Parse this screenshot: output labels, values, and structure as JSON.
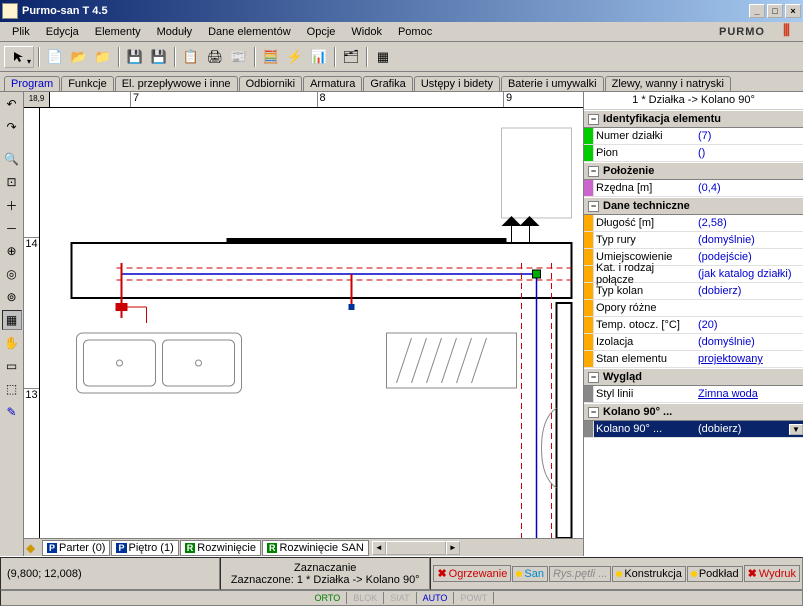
{
  "window": {
    "title": "Purmo-san T 4.5"
  },
  "brand": {
    "name": "PURMO"
  },
  "menu": [
    "Plik",
    "Edycja",
    "Elementy",
    "Moduły",
    "Dane elementów",
    "Opcje",
    "Widok",
    "Pomoc"
  ],
  "tabs": {
    "items": [
      "Program",
      "Funkcje",
      "El. przepływowe i inne",
      "Odbiorniki",
      "Armatura",
      "Grafika",
      "Ustępy i bidety",
      "Baterie i umywalki",
      "Zlewy, wanny i natryski"
    ],
    "active": 0
  },
  "ruler": {
    "h": [
      7,
      8,
      9
    ],
    "v": [
      14,
      13
    ],
    "corner": "18,9"
  },
  "bottom_tabs": [
    {
      "badge": "P",
      "badge_bg": "#003399",
      "label": "Parter (0)"
    },
    {
      "badge": "P",
      "badge_bg": "#003399",
      "label": "Piętro (1)"
    },
    {
      "badge": "R",
      "badge_bg": "#008000",
      "label": "Rozwinięcie"
    },
    {
      "badge": "R",
      "badge_bg": "#008000",
      "label": "Rozwinięcie SAN"
    }
  ],
  "properties": {
    "title": "1 * Działka -> Kolano 90°",
    "groups": [
      {
        "name": "Identyfikacja elementu",
        "rows": [
          {
            "swatch": "#00cc00",
            "label": "Numer działki",
            "value": "(7)",
            "link": true
          },
          {
            "swatch": "#00cc00",
            "label": "Pion",
            "value": "()",
            "link": true
          }
        ]
      },
      {
        "name": "Położenie",
        "rows": [
          {
            "swatch": "#cc66cc",
            "label": "Rzędna [m]",
            "value": "(0,4)",
            "link": true
          }
        ]
      },
      {
        "name": "Dane techniczne",
        "rows": [
          {
            "swatch": "#ffaa00",
            "label": "Długość [m]",
            "value": "(2,58)",
            "link": true
          },
          {
            "swatch": "#ffaa00",
            "label": "Typ rury",
            "value": "(domyślnie)",
            "link": true
          },
          {
            "swatch": "#ffaa00",
            "label": "Umiejscowienie",
            "value": "(podejście)",
            "link": true
          },
          {
            "swatch": "#ffaa00",
            "label": "Kat. i rodzaj połącze",
            "value": "(jak katalog działki)",
            "link": true
          },
          {
            "swatch": "#ffaa00",
            "label": "Typ kolan",
            "value": "(dobierz)",
            "link": true
          },
          {
            "swatch": "#ffaa00",
            "label": "Opory różne",
            "value": "",
            "link": false
          },
          {
            "swatch": "#ffaa00",
            "label": "Temp. otocz. [°C]",
            "value": "(20)",
            "link": true
          },
          {
            "swatch": "#ffaa00",
            "label": "Izolacja",
            "value": "(domyślnie)",
            "link": true
          },
          {
            "swatch": "#ffaa00",
            "label": "Stan elementu",
            "value": "projektowany",
            "link": true,
            "underline": true
          }
        ]
      },
      {
        "name": "Wygląd",
        "rows": [
          {
            "swatch": "#888888",
            "label": "Styl linii",
            "value": "Zimna woda",
            "link": true,
            "underline": true
          }
        ]
      },
      {
        "name": "Kolano 90° ...",
        "rows": [
          {
            "swatch": "#888888",
            "label": "Kolano 90° ...",
            "value": "(dobierz)",
            "link": true,
            "selected": true
          }
        ]
      }
    ]
  },
  "status": {
    "coords": "(9,800; 12,008)",
    "mode_label": "Zaznaczanie",
    "selection": "Zaznaczone: 1 * Działka -> Kolano 90°",
    "layers": [
      {
        "icon": "x",
        "label": "Ogrzewanie",
        "color": "#cc0000"
      },
      {
        "icon": "dot",
        "label": "San",
        "color": "#0088cc",
        "dot_color": "#ffcc00"
      },
      {
        "icon": "dim",
        "label": "Rys.pętli ...",
        "color": "#888888"
      },
      {
        "icon": "dot",
        "label": "Konstrukcja",
        "color": "#000000",
        "dot_color": "#ffcc00"
      },
      {
        "icon": "dot",
        "label": "Podkład",
        "color": "#000000",
        "dot_color": "#ffcc00"
      },
      {
        "icon": "x",
        "label": "Wydruk",
        "color": "#cc0000"
      }
    ],
    "modes": [
      {
        "label": "ORTO",
        "state": "on"
      },
      {
        "label": "BLOK",
        "state": "off"
      },
      {
        "label": "SIAT",
        "state": "off"
      },
      {
        "label": "AUTO",
        "state": "auto"
      },
      {
        "label": "POWT",
        "state": "off"
      }
    ]
  }
}
